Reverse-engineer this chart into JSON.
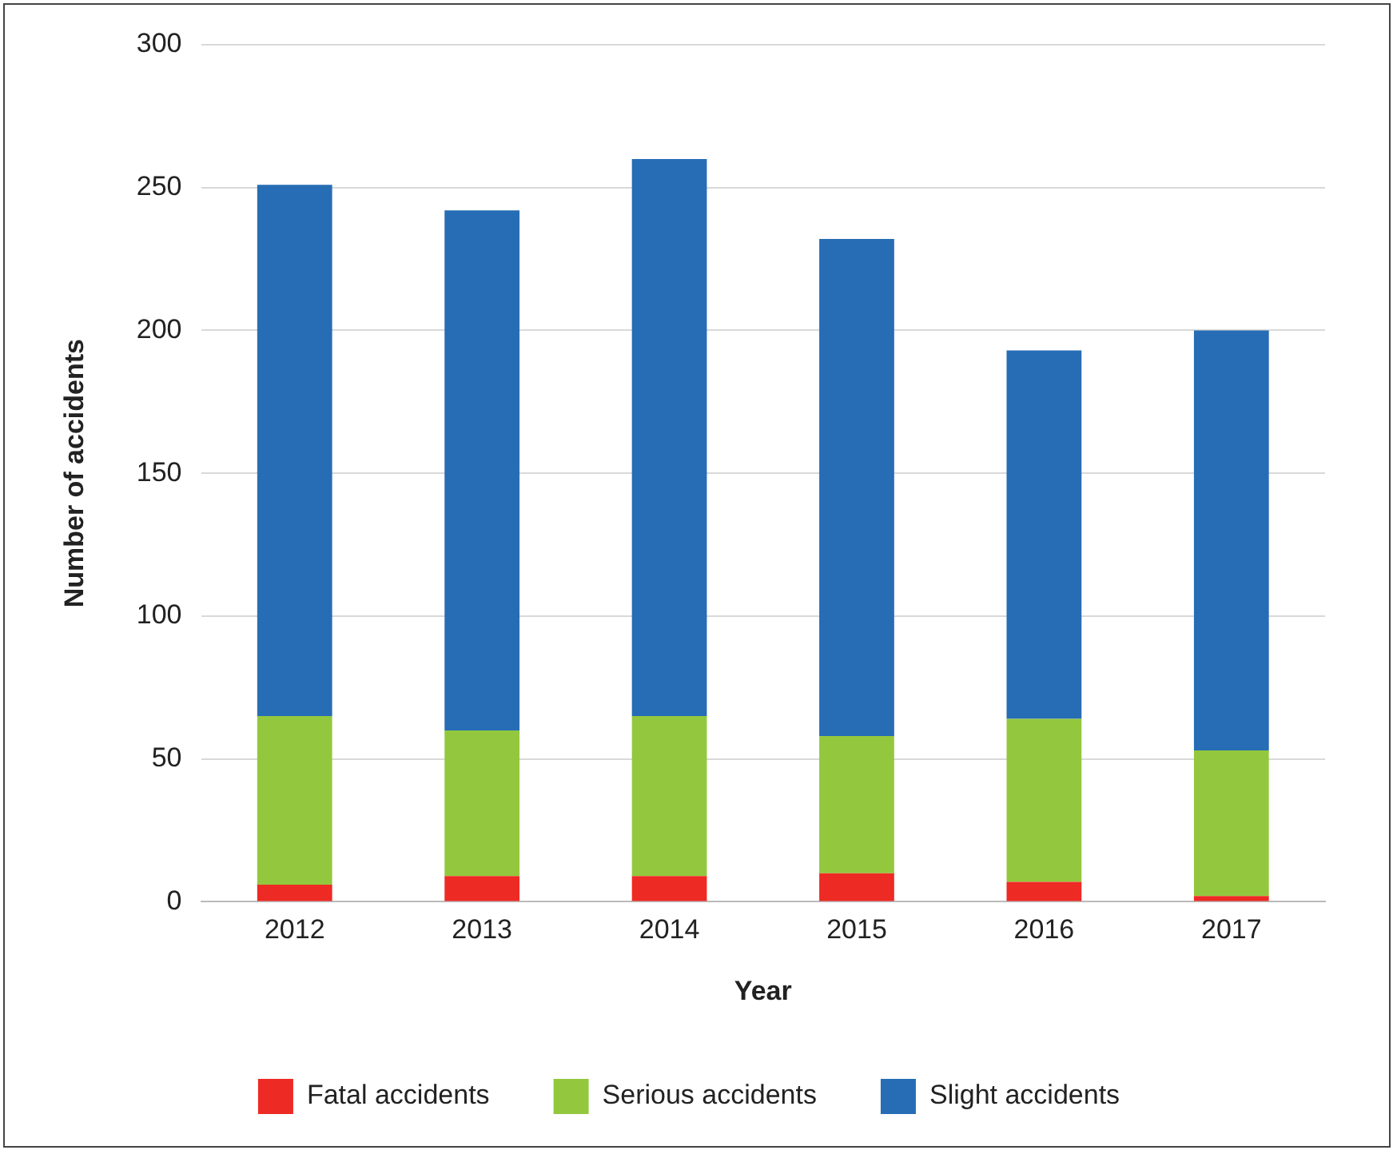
{
  "chart_data": {
    "type": "bar",
    "xlabel": "Year",
    "ylabel": "Number of accidents",
    "categories": [
      "2012",
      "2013",
      "2014",
      "2015",
      "2016",
      "2017"
    ],
    "series": [
      {
        "name": "Fatal accidents",
        "color": "#ee2a24",
        "values": [
          6,
          9,
          9,
          10,
          7,
          2
        ]
      },
      {
        "name": "Serious accidents",
        "color": "#93c83e",
        "values": [
          59,
          51,
          56,
          48,
          57,
          51
        ]
      },
      {
        "name": "Slight accidents",
        "color": "#276db5",
        "values": [
          186,
          182,
          195,
          174,
          129,
          147
        ]
      }
    ],
    "stacked": true,
    "ylim": [
      0,
      300
    ],
    "yticks": [
      0,
      50,
      100,
      150,
      200,
      250,
      300
    ],
    "grid": "y",
    "legend": "bottom"
  }
}
